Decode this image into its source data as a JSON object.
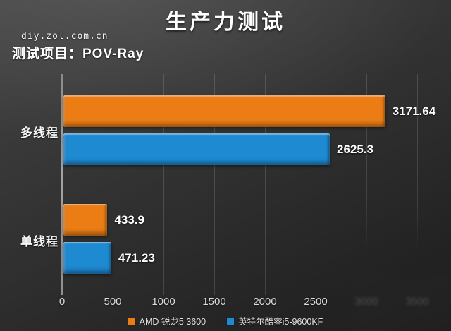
{
  "watermark": "diy.zol.com.cn",
  "chart_data": {
    "type": "bar",
    "orientation": "horizontal",
    "title": "生产力测试",
    "subtitle": "测试项目：POV-Ray",
    "categories": [
      "多线程",
      "单线程"
    ],
    "series": [
      {
        "name": "AMD 锐龙5 3600",
        "color": "#ec7d15",
        "values": [
          3171.64,
          433.9
        ],
        "value_labels": [
          "3171.64",
          "433.9"
        ]
      },
      {
        "name": "英特尔酷睿i5-9600KF",
        "color": "#1e8ad2",
        "values": [
          2625.3,
          471.23
        ],
        "value_labels": [
          "2625.3",
          "471.23"
        ]
      }
    ],
    "xlim": [
      0,
      3500
    ],
    "x_ticks": [
      {
        "label": "0"
      },
      {
        "label": "500"
      },
      {
        "label": "1000"
      },
      {
        "label": "1500"
      },
      {
        "label": "2000"
      },
      {
        "label": "2500"
      },
      {
        "label": "3000",
        "faded": true
      },
      {
        "label": "3500",
        "faded": true
      }
    ],
    "grid": true,
    "legend_position": "bottom",
    "background": "#303030",
    "text_color": "#ffffff"
  }
}
